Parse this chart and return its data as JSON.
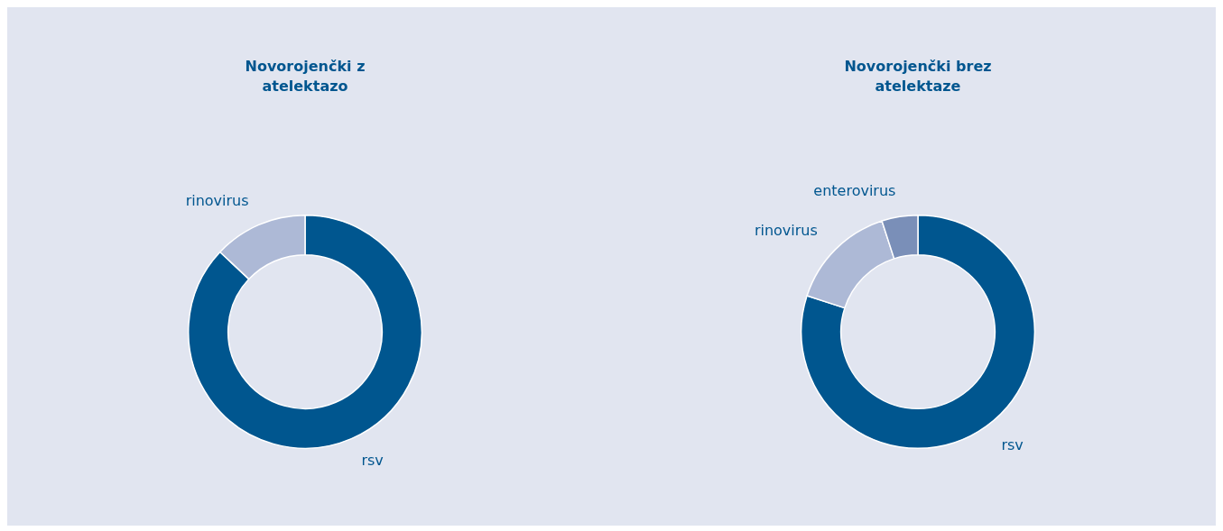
{
  "chart_data": [
    {
      "type": "donut",
      "title": "Novorojenčki z atelektazo",
      "categories": [
        "rsv",
        "rinovirus"
      ],
      "values": [
        87,
        13
      ],
      "colors": [
        "#00568f",
        "#adb9d6"
      ]
    },
    {
      "type": "donut",
      "title": "Novorojenčki brez atelektaze",
      "categories": [
        "rsv",
        "rinovirus",
        "enterovirus"
      ],
      "values": [
        80,
        15,
        5
      ],
      "colors": [
        "#00568f",
        "#adb9d6",
        "#7a8fb8"
      ]
    }
  ]
}
